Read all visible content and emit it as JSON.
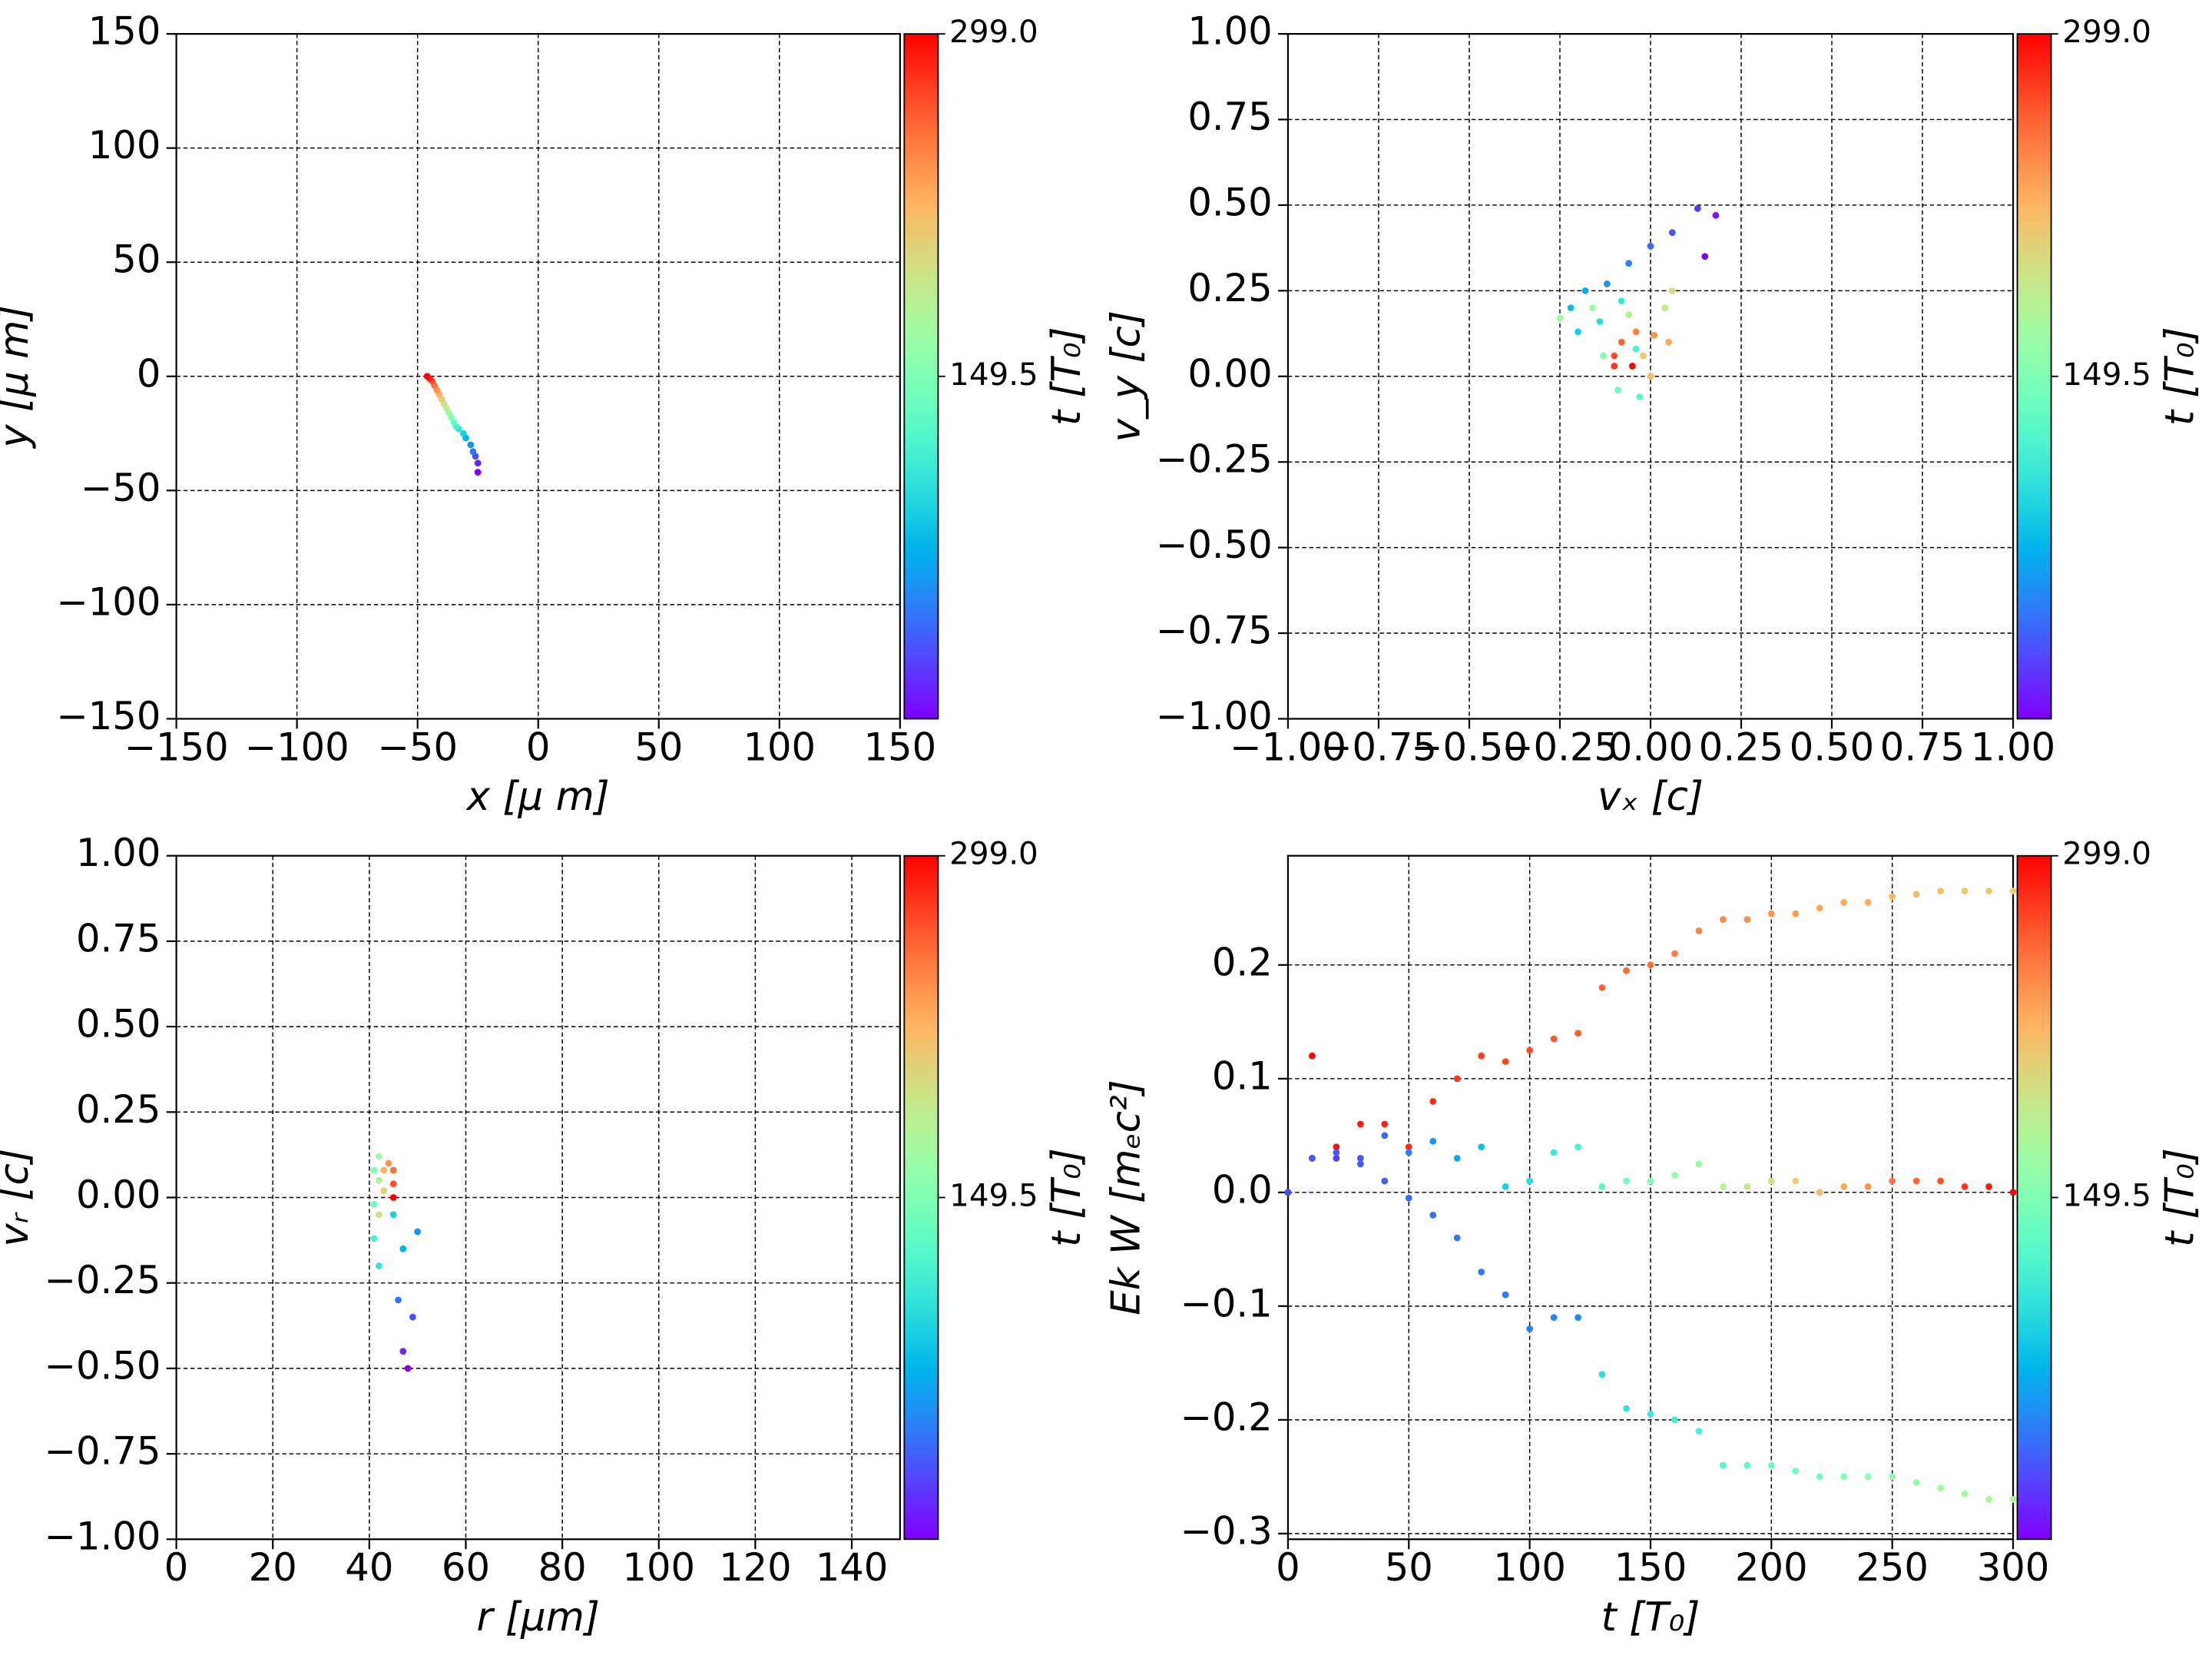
{
  "chart_data": [
    {
      "type": "scatter",
      "xlabel": "x  [μ m]",
      "ylabel": "y  [μ m]",
      "xlim": [
        -150,
        150
      ],
      "ylim": [
        -150,
        150
      ],
      "xticks": [
        {
          "value": -150,
          "label": "−150"
        },
        {
          "value": -100,
          "label": "−100"
        },
        {
          "value": -50,
          "label": "−50"
        },
        0,
        50,
        100,
        150
      ],
      "yticks": [
        {
          "value": -150,
          "label": "−150"
        },
        {
          "value": -100,
          "label": "−100"
        },
        {
          "value": -50,
          "label": "−50"
        },
        0,
        50,
        100,
        150
      ],
      "grid": true,
      "colorbar": {
        "label": "t [T₀]",
        "lim": [
          0,
          299
        ],
        "ticks": [
          149.5,
          {
            "value": 299,
            "label": "299.0"
          }
        ]
      },
      "series": [
        {
          "x": [
            -25,
            -25,
            -26,
            -27,
            -28,
            -30,
            -31,
            -33,
            -34,
            -35,
            -36,
            -37,
            -38,
            -39,
            -40,
            -41,
            -42,
            -43,
            -44,
            -45,
            -46
          ],
          "y": [
            -42,
            -38,
            -35,
            -33,
            -30,
            -27,
            -25,
            -23,
            -22,
            -20,
            -18,
            -16,
            -14,
            -12,
            -10,
            -8,
            -6,
            -4,
            -2,
            -1,
            0
          ],
          "c": [
            0,
            15,
            30,
            45,
            60,
            75,
            90,
            105,
            120,
            135,
            150,
            165,
            180,
            195,
            210,
            225,
            240,
            255,
            270,
            285,
            299
          ]
        }
      ]
    },
    {
      "type": "scatter",
      "xlabel": "vₓ [c]",
      "ylabel": "v_y [c]",
      "xlim": [
        -1,
        1
      ],
      "ylim": [
        -1,
        1
      ],
      "xticks": [
        {
          "value": -1,
          "label": "−1.00"
        },
        {
          "value": -0.75,
          "label": "−0.75"
        },
        {
          "value": -0.5,
          "label": "−0.50"
        },
        {
          "value": -0.25,
          "label": "−0.25"
        },
        {
          "value": 0,
          "label": "0.00"
        },
        {
          "value": 0.25,
          "label": "0.25"
        },
        {
          "value": 0.5,
          "label": "0.50"
        },
        {
          "value": 0.75,
          "label": "0.75"
        },
        {
          "value": 1,
          "label": "1.00"
        }
      ],
      "yticks": [
        {
          "value": -1,
          "label": "−1.00"
        },
        {
          "value": -0.75,
          "label": "−0.75"
        },
        {
          "value": -0.5,
          "label": "−0.50"
        },
        {
          "value": -0.25,
          "label": "−0.25"
        },
        {
          "value": 0,
          "label": "0.00"
        },
        {
          "value": 0.25,
          "label": "0.25"
        },
        {
          "value": 0.5,
          "label": "0.50"
        },
        {
          "value": 0.75,
          "label": "0.75"
        },
        {
          "value": 1,
          "label": "1.00"
        }
      ],
      "grid": true,
      "colorbar": {
        "label": "t [T₀]",
        "lim": [
          0,
          299
        ],
        "ticks": [
          149.5,
          {
            "value": 299,
            "label": "299.0"
          }
        ]
      },
      "series": [
        {
          "x": [
            0.15,
            0.18,
            0.13,
            0.06,
            0.0,
            -0.06,
            -0.12,
            -0.18,
            -0.22,
            -0.2,
            -0.14,
            -0.08,
            -0.04,
            -0.03,
            -0.09,
            -0.13,
            -0.25,
            -0.16,
            -0.06,
            0.04,
            0.06,
            -0.02,
            0.0,
            0.05,
            0.01,
            -0.04,
            -0.08,
            -0.1,
            -0.1,
            -0.05
          ],
          "y": [
            0.35,
            0.47,
            0.49,
            0.42,
            0.38,
            0.33,
            0.27,
            0.25,
            0.2,
            0.13,
            0.16,
            0.22,
            0.08,
            -0.06,
            -0.04,
            0.06,
            0.17,
            0.2,
            0.18,
            0.2,
            0.25,
            0.06,
            0.0,
            0.1,
            0.12,
            0.13,
            0.1,
            0.06,
            0.03,
            0.03
          ],
          "c": [
            0,
            10,
            20,
            30,
            40,
            50,
            60,
            70,
            80,
            90,
            100,
            110,
            120,
            130,
            140,
            150,
            160,
            170,
            180,
            190,
            200,
            210,
            220,
            230,
            240,
            250,
            260,
            270,
            280,
            299
          ]
        }
      ]
    },
    {
      "type": "scatter",
      "xlabel": "r [μm]",
      "ylabel": "vᵣ [c]",
      "xlim": [
        0,
        150
      ],
      "ylim": [
        -1,
        1
      ],
      "xticks": [
        0,
        20,
        40,
        60,
        80,
        100,
        120,
        140
      ],
      "yticks": [
        {
          "value": -1,
          "label": "−1.00"
        },
        {
          "value": -0.75,
          "label": "−0.75"
        },
        {
          "value": -0.5,
          "label": "−0.50"
        },
        {
          "value": -0.25,
          "label": "−0.25"
        },
        {
          "value": 0,
          "label": "0.00"
        },
        {
          "value": 0.25,
          "label": "0.25"
        },
        {
          "value": 0.5,
          "label": "0.50"
        },
        {
          "value": 0.75,
          "label": "0.75"
        },
        {
          "value": 1,
          "label": "1.00"
        }
      ],
      "grid": true,
      "colorbar": {
        "label": "t [T₀]",
        "lim": [
          0,
          299
        ],
        "ticks": [
          149.5,
          {
            "value": 299,
            "label": "299.0"
          }
        ]
      },
      "series": [
        {
          "x": [
            48,
            47,
            49,
            46,
            50,
            47,
            45,
            42,
            41,
            41,
            41,
            42,
            42,
            42,
            43,
            43,
            44,
            45,
            45,
            45
          ],
          "y": [
            -0.5,
            -0.45,
            -0.35,
            -0.3,
            -0.1,
            -0.15,
            -0.05,
            -0.2,
            -0.12,
            -0.02,
            0.08,
            0.12,
            0.05,
            -0.05,
            0.02,
            0.08,
            0.1,
            0.08,
            0.04,
            0.0
          ],
          "c": [
            0,
            15,
            30,
            45,
            60,
            75,
            90,
            105,
            120,
            135,
            150,
            165,
            180,
            195,
            210,
            225,
            240,
            255,
            270,
            299
          ]
        }
      ]
    },
    {
      "type": "scatter",
      "xlabel": "t [T₀]",
      "ylabel": "Ek W [mₑc²]",
      "xlim": [
        0,
        300
      ],
      "ylim": [
        -0.305,
        0.296
      ],
      "xticks": [
        0,
        50,
        100,
        150,
        200,
        250,
        300
      ],
      "yticks": [
        {
          "value": -0.3,
          "label": "−0.3"
        },
        {
          "value": -0.2,
          "label": "−0.2"
        },
        {
          "value": -0.1,
          "label": "−0.1"
        },
        {
          "value": 0,
          "label": "0.0"
        },
        0.1,
        0.2
      ],
      "grid": true,
      "colorbar": {
        "label": "t [T₀]",
        "lim": [
          0,
          299
        ],
        "ticks": [
          149.5,
          {
            "value": 299,
            "label": "299.0"
          }
        ]
      },
      "series": [
        {
          "x": [
            0,
            10,
            20,
            30,
            40,
            50,
            60,
            70,
            80,
            90,
            100,
            110,
            120,
            130,
            140,
            150,
            160,
            170,
            180,
            190,
            200,
            210,
            220,
            230,
            240,
            250,
            260,
            270,
            280,
            290,
            300
          ],
          "y": [
            0.0,
            0.12,
            0.04,
            0.06,
            0.06,
            0.04,
            0.08,
            0.1,
            0.12,
            0.115,
            0.125,
            0.135,
            0.14,
            0.18,
            0.195,
            0.2,
            0.21,
            0.23,
            0.24,
            0.24,
            0.245,
            0.245,
            0.25,
            0.255,
            0.255,
            0.26,
            0.262,
            0.265,
            0.265,
            0.265,
            0.265
          ],
          "c": [
            299,
            296,
            293,
            290,
            287,
            284,
            281,
            278,
            275,
            272,
            269,
            266,
            263,
            260,
            257,
            254,
            251,
            248,
            245,
            242,
            239,
            236,
            233,
            230,
            227,
            224,
            221,
            218,
            215,
            212,
            209
          ]
        },
        {
          "x": [
            0,
            10,
            20,
            30,
            40,
            50,
            60,
            70,
            80,
            90,
            100,
            110,
            120,
            130,
            140,
            150,
            160,
            170,
            180,
            190,
            200,
            210,
            220,
            230,
            240,
            250,
            260,
            270,
            280,
            290,
            300
          ],
          "y": [
            0.0,
            0.03,
            0.03,
            0.03,
            0.05,
            0.035,
            0.045,
            0.03,
            0.04,
            0.005,
            0.01,
            0.035,
            0.04,
            0.005,
            0.01,
            0.01,
            0.015,
            0.025,
            0.005,
            0.005,
            0.01,
            0.01,
            0.0,
            0.005,
            0.005,
            0.01,
            0.01,
            0.01,
            0.005,
            0.005,
            0.0
          ],
          "c": [
            0,
            10,
            20,
            30,
            40,
            50,
            60,
            70,
            80,
            90,
            100,
            110,
            120,
            130,
            140,
            150,
            160,
            170,
            180,
            190,
            200,
            210,
            220,
            230,
            240,
            250,
            260,
            270,
            280,
            290,
            299
          ]
        },
        {
          "x": [
            0,
            10,
            20,
            30,
            40,
            50,
            60,
            70,
            80,
            90,
            100,
            110,
            120,
            130,
            140,
            150,
            160,
            170,
            180,
            190,
            200,
            210,
            220,
            230,
            240,
            250,
            260,
            270,
            280,
            290,
            300
          ],
          "y": [
            0.0,
            0.03,
            0.035,
            0.025,
            0.01,
            -0.005,
            -0.02,
            -0.04,
            -0.07,
            -0.09,
            -0.12,
            -0.11,
            -0.11,
            -0.16,
            -0.19,
            -0.195,
            -0.2,
            -0.21,
            -0.24,
            -0.24,
            -0.24,
            -0.245,
            -0.25,
            -0.25,
            -0.25,
            -0.25,
            -0.255,
            -0.26,
            -0.265,
            -0.27,
            -0.27
          ],
          "c": [
            30,
            32,
            34,
            36,
            38,
            40,
            42,
            44,
            46,
            48,
            50,
            52,
            55,
            100,
            105,
            110,
            115,
            120,
            125,
            130,
            135,
            140,
            145,
            150,
            155,
            160,
            163,
            166,
            170,
            173,
            176
          ]
        }
      ]
    }
  ]
}
